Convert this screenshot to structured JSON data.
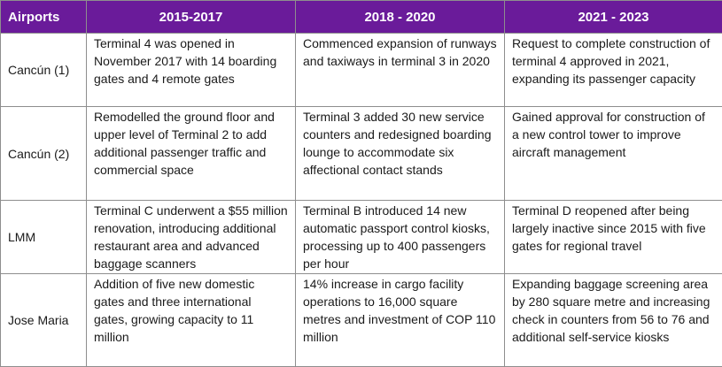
{
  "headers": [
    "Airports",
    "2015-2017",
    "2018 - 2020",
    "2021 - 2023"
  ],
  "rows": [
    {
      "airport": "Cancún (1)",
      "p1": "Terminal 4 was opened in November 2017 with 14 boarding gates and 4 remote gates",
      "p2": "Commenced expansion of runways and taxiways in terminal 3 in 2020",
      "p3": "Request to complete construction of terminal 4 approved in 2021, expanding its passenger capacity"
    },
    {
      "airport": "Cancún (2)",
      "p1": "Remodelled the ground floor and upper level of Terminal 2 to add additional passenger traffic and commercial space",
      "p2": "Terminal 3 added 30 new service counters and redesigned boarding lounge to accommodate six affectional contact stands",
      "p3": "Gained approval for construction of a new control tower to improve aircraft management"
    },
    {
      "airport": "LMM",
      "p1": "Terminal C underwent a $55 million renovation, introducing additional restaurant area and advanced baggage scanners",
      "p2": "Terminal B introduced 14 new automatic passport control kiosks, processing up to 400 passengers per hour",
      "p3": "Terminal D reopened after being largely inactive since 2015 with five gates for regional travel"
    },
    {
      "airport": "Jose Maria",
      "p1": "Addition of five new domestic gates and three international gates, growing capacity to 11 million",
      "p2": "14%  increase in cargo facility operations to 16,000  square metres and investment of COP 110 million",
      "p3": "Expanding baggage screening area by 280 square metre and increasing check in counters from 56 to 76 and additional self-service kiosks"
    }
  ]
}
